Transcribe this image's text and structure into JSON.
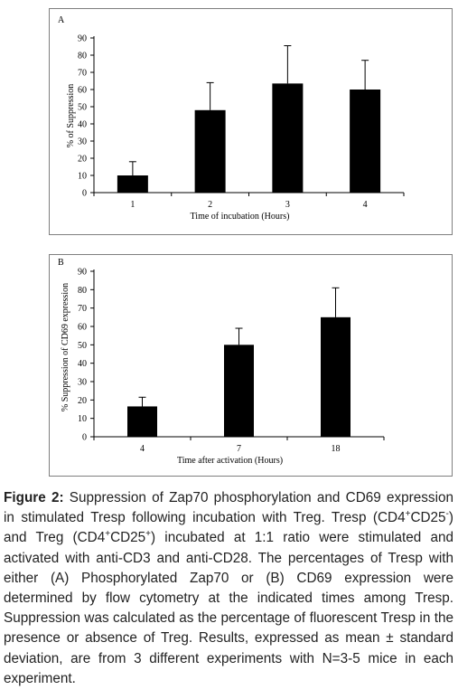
{
  "chart_data": [
    {
      "type": "bar",
      "panel_label": "A",
      "categories": [
        "1",
        "2",
        "3",
        "4"
      ],
      "values": [
        10,
        48,
        63.5,
        60
      ],
      "error": [
        8,
        16,
        22,
        17
      ],
      "ylabel": "% of Suppression",
      "xlabel": "Time of incubation (Hours)",
      "ylim": [
        0,
        90
      ],
      "yticks": [
        0,
        10,
        20,
        30,
        40,
        50,
        60,
        70,
        80,
        90
      ],
      "bar_color": "#000000",
      "grid": false
    },
    {
      "type": "bar",
      "panel_label": "B",
      "categories": [
        "4",
        "7",
        "18"
      ],
      "values": [
        16.5,
        50,
        65
      ],
      "error": [
        5,
        9,
        16
      ],
      "ylabel": "% Suppression of CD69 expression",
      "xlabel": "Time after activation (Hours)",
      "ylim": [
        0,
        90
      ],
      "yticks": [
        0,
        10,
        20,
        30,
        40,
        50,
        60,
        70,
        80,
        90
      ],
      "bar_color": "#000000",
      "grid": false
    }
  ],
  "caption": {
    "label": "Figure 2:",
    "t1": " Suppression of Zap70 phosphorylation and CD69 expression in stimulated Tresp following incubation with Treg. Tresp (CD4",
    "s1": "+",
    "t2": "CD25",
    "s2": "-",
    "t3": ") and Treg (CD4",
    "s3": "+",
    "t4": "CD25",
    "s4": "+",
    "t5": ") incubated at 1:1 ratio were stimulated and activated with anti-CD3 and anti-CD28. The percentages of Tresp with either (A) Phosphorylated Zap70 or (B) CD69 expression were determined by flow cytometry at the indicated times among Tresp. Suppression was calculated as the percentage of fluorescent Tresp in the presence or absence of Treg. Results, expressed as mean ± standard deviation, are from 3 different experiments with N=3-5 mice in each experiment."
  }
}
